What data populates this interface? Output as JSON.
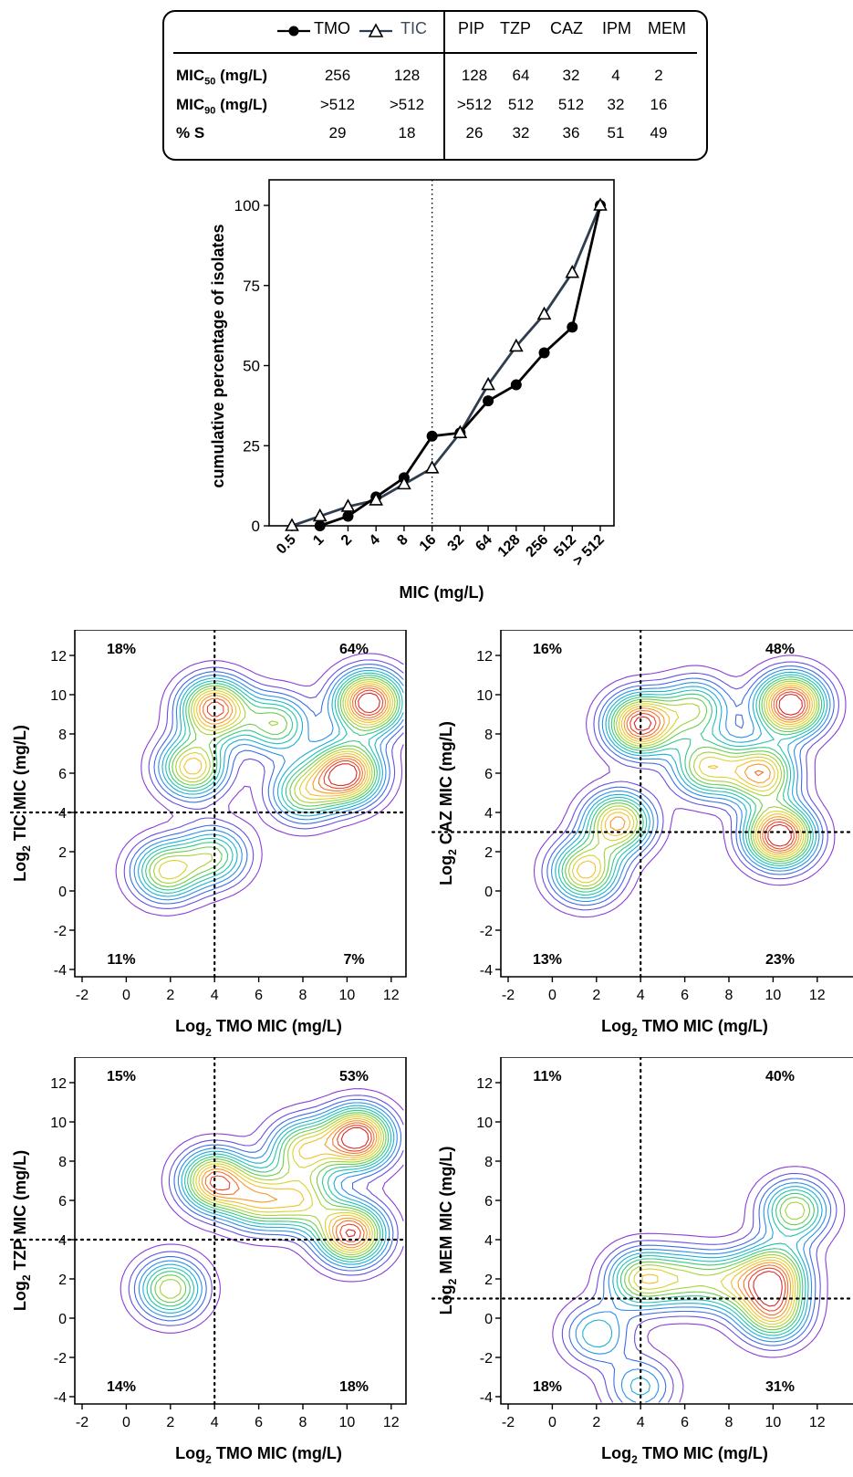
{
  "table": {
    "legend": [
      {
        "name": "TMO",
        "marker": "filled-circle",
        "color": "#000000"
      },
      {
        "name": "TIC",
        "marker": "open-triangle",
        "color": "#2e3d4f"
      }
    ],
    "columns": [
      "PIP",
      "TZP",
      "CAZ",
      "IPM",
      "MEM"
    ],
    "rows": [
      {
        "label_main": "MIC",
        "label_sub": "50",
        "label_rest": " (mg/L)",
        "values": [
          "256",
          "128",
          "128",
          "64",
          "32",
          "4",
          "2"
        ]
      },
      {
        "label_main": "MIC",
        "label_sub": "90",
        "label_rest": " (mg/L)",
        "values": [
          ">512",
          ">512",
          ">512",
          "512",
          "512",
          "32",
          "16"
        ]
      },
      {
        "label_main": "% S",
        "label_sub": "",
        "label_rest": "",
        "values": [
          "29",
          "18",
          "26",
          "32",
          "36",
          "51",
          "49"
        ]
      }
    ]
  },
  "chart_data": [
    {
      "type": "line",
      "xlabel": "MIC (mg/L)",
      "ylabel": "cumulative percentage of isolates",
      "categories": [
        "0.5",
        "1",
        "2",
        "4",
        "8",
        "16",
        "32",
        "64",
        "128",
        "256",
        "512",
        "> 512"
      ],
      "ylim": [
        0,
        100
      ],
      "yticks": [
        "0",
        "25",
        "50",
        "75",
        "100"
      ],
      "reference_line_x": "16",
      "series": [
        {
          "name": "TMO",
          "values": [
            null,
            0,
            3,
            9,
            15,
            28,
            29,
            39,
            44,
            54,
            62,
            100
          ]
        },
        {
          "name": "TIC",
          "values": [
            0,
            3,
            6,
            8,
            13,
            18,
            29,
            44,
            56,
            66,
            79,
            100
          ]
        }
      ]
    },
    {
      "type": "contour",
      "xlabel_main": "Log",
      "xlabel_sub": "2",
      "xlabel_rest": " TMO MIC (mg/L)",
      "ylabel_main": "Log",
      "ylabel_sub": "2",
      "ylabel_rest": " TIC MIC (mg/L)",
      "xticks": [
        "-2",
        "0",
        "2",
        "4",
        "6",
        "8",
        "10",
        "12"
      ],
      "yticks": [
        "-4",
        "-2",
        "0",
        "2",
        "4",
        "6",
        "8",
        "10",
        "12"
      ],
      "xlim": [
        -2,
        13
      ],
      "ylim": [
        -4.5,
        12.5
      ],
      "breakpoint_x": 4,
      "breakpoint_y": 4,
      "quadrants": {
        "top_left": "18%",
        "top_right": "64%",
        "bottom_left": "11%",
        "bottom_right": "7%"
      },
      "peaks": [
        [
          4,
          9.3,
          1
        ],
        [
          11,
          9.6,
          1.15
        ],
        [
          10,
          6,
          1.1
        ],
        [
          3,
          6.3,
          0.8
        ],
        [
          1.8,
          1,
          0.7
        ],
        [
          4,
          1.8,
          0.55
        ],
        [
          6.8,
          8.5,
          0.6
        ],
        [
          8,
          5,
          0.6
        ]
      ]
    },
    {
      "type": "contour",
      "xlabel_main": "Log",
      "xlabel_sub": "2",
      "xlabel_rest": " TMO MIC (mg/L)",
      "ylabel_main": "Log",
      "ylabel_sub": "2",
      "ylabel_rest": " CAZ MIC (mg/L)",
      "xticks": [
        "-2",
        "0",
        "2",
        "4",
        "6",
        "8",
        "10",
        "12"
      ],
      "yticks": [
        "-4",
        "-2",
        "0",
        "2",
        "4",
        "6",
        "8",
        "10",
        "12"
      ],
      "xlim": [
        -2,
        13
      ],
      "ylim": [
        -4.5,
        12.5
      ],
      "breakpoint_x": 4,
      "breakpoint_y": 3,
      "quadrants": {
        "top_left": "16%",
        "top_right": "48%",
        "bottom_left": "13%",
        "bottom_right": "23%"
      },
      "peaks": [
        [
          4,
          8.5,
          1
        ],
        [
          10.8,
          9.5,
          1.1
        ],
        [
          10.3,
          2.8,
          1.1
        ],
        [
          9.5,
          6,
          0.8
        ],
        [
          7,
          6.3,
          0.65
        ],
        [
          3,
          3.5,
          0.8
        ],
        [
          1.5,
          1,
          0.75
        ],
        [
          6.5,
          9.3,
          0.55
        ]
      ]
    },
    {
      "type": "contour",
      "xlabel_main": "Log",
      "xlabel_sub": "2",
      "xlabel_rest": " TMO MIC (mg/L)",
      "ylabel_main": "Log",
      "ylabel_sub": "2",
      "ylabel_rest": " TZP MIC (mg/L)",
      "xticks": [
        "-2",
        "0",
        "2",
        "4",
        "6",
        "8",
        "10",
        "12"
      ],
      "yticks": [
        "-4",
        "-2",
        "0",
        "2",
        "4",
        "6",
        "8",
        "10",
        "12"
      ],
      "xlim": [
        -2,
        13
      ],
      "ylim": [
        -4.5,
        12.5
      ],
      "breakpoint_x": 4,
      "breakpoint_y": 4,
      "quadrants": {
        "top_left": "15%",
        "top_right": "53%",
        "bottom_left": "14%",
        "bottom_right": "18%"
      },
      "peaks": [
        [
          10.5,
          9.2,
          1.15
        ],
        [
          10.2,
          4.3,
          1.05
        ],
        [
          4,
          7,
          0.95
        ],
        [
          6,
          6,
          0.65
        ],
        [
          8,
          8.6,
          0.7
        ],
        [
          2,
          1.5,
          0.7
        ],
        [
          8,
          6,
          0.6
        ]
      ]
    },
    {
      "type": "contour",
      "xlabel_main": "Log",
      "xlabel_sub": "2",
      "xlabel_rest": " TMO MIC (mg/L)",
      "ylabel_main": "Log",
      "ylabel_sub": "2",
      "ylabel_rest": " MEM MIC (mg/L)",
      "xticks": [
        "-2",
        "0",
        "2",
        "4",
        "6",
        "8",
        "10",
        "12"
      ],
      "yticks": [
        "-4",
        "-2",
        "0",
        "2",
        "4",
        "6",
        "8",
        "10",
        "12"
      ],
      "xlim": [
        -2,
        13
      ],
      "ylim": [
        -4.5,
        12.5
      ],
      "breakpoint_x": 4,
      "breakpoint_y": 1,
      "quadrants": {
        "top_left": "11%",
        "top_right": "40%",
        "bottom_left": "18%",
        "bottom_right": "31%"
      },
      "peaks": [
        [
          10,
          2.2,
          1.15
        ],
        [
          10,
          0.3,
          1
        ],
        [
          4,
          2,
          0.9
        ],
        [
          11,
          5.5,
          0.9
        ],
        [
          6,
          2,
          0.65
        ],
        [
          8,
          1.8,
          0.65
        ],
        [
          2,
          -0.8,
          0.55
        ],
        [
          4,
          -3.5,
          0.5
        ]
      ]
    }
  ]
}
